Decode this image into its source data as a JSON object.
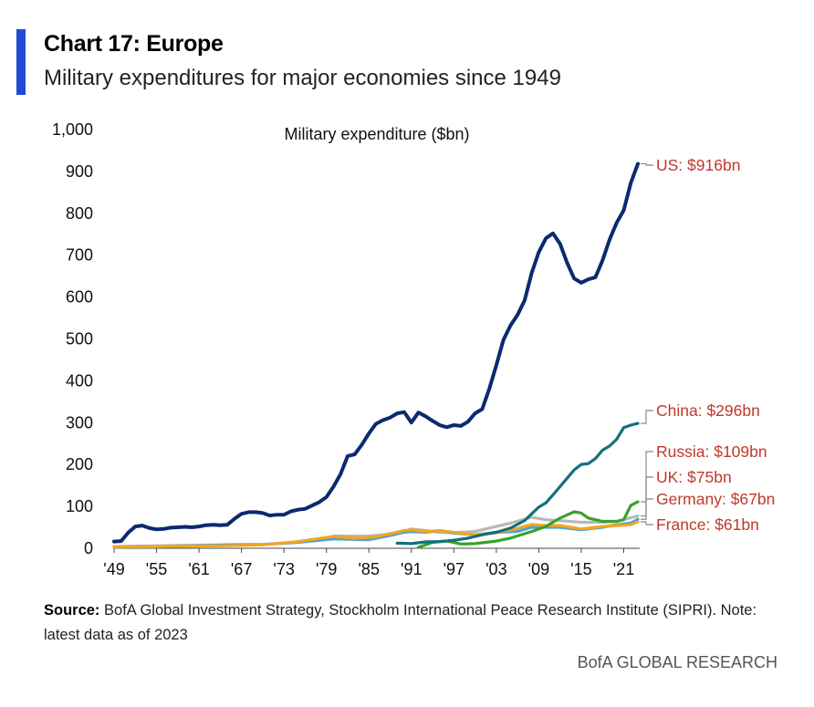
{
  "header": {
    "title": "Chart 17: Europe",
    "subtitle": "Military expenditures for major economies since 1949"
  },
  "footer": {
    "source_label": "Source:",
    "source_text": " BofA Global Investment Strategy, Stockholm International Peace Research Institute (SIPRI). Note: latest data as of 2023",
    "brand": "BofA GLOBAL RESEARCH"
  },
  "colors": {
    "accent": "#1f4bd8",
    "label_red": "#c0392b",
    "us": "#0b2a6f",
    "china": "#127080",
    "russia": "#3aa12a",
    "uk": "#b8b8b8",
    "germany": "#4aa3d8",
    "france": "#f2a61e"
  },
  "chart_data": {
    "type": "line",
    "title": "Military expenditure ($bn)",
    "xlabel": "",
    "ylabel": "",
    "xlim": [
      1949,
      2023
    ],
    "ylim": [
      0,
      1000
    ],
    "yticks": [
      "0",
      "100",
      "200",
      "300",
      "400",
      "500",
      "600",
      "700",
      "800",
      "900",
      "1,000"
    ],
    "xticks": [
      {
        "year": 1949,
        "label": "'49"
      },
      {
        "year": 1955,
        "label": "'55"
      },
      {
        "year": 1961,
        "label": "'61"
      },
      {
        "year": 1967,
        "label": "'67"
      },
      {
        "year": 1973,
        "label": "'73"
      },
      {
        "year": 1979,
        "label": "'79"
      },
      {
        "year": 1985,
        "label": "'85"
      },
      {
        "year": 1991,
        "label": "'91"
      },
      {
        "year": 1997,
        "label": "'97"
      },
      {
        "year": 2003,
        "label": "'03"
      },
      {
        "year": 2009,
        "label": "'09"
      },
      {
        "year": 2015,
        "label": "'15"
      },
      {
        "year": 2021,
        "label": "'21"
      }
    ],
    "grid": false,
    "series": [
      {
        "key": "uk",
        "label": "UK: $75bn",
        "label_value": 75,
        "points": [
          [
            1949,
            2
          ],
          [
            1955,
            4
          ],
          [
            1965,
            6
          ],
          [
            1970,
            7
          ],
          [
            1975,
            12
          ],
          [
            1979,
            20
          ],
          [
            1980,
            27
          ],
          [
            1985,
            27
          ],
          [
            1987,
            30
          ],
          [
            1990,
            38
          ],
          [
            1991,
            44
          ],
          [
            1993,
            40
          ],
          [
            1995,
            36
          ],
          [
            1997,
            35
          ],
          [
            2000,
            38
          ],
          [
            2003,
            50
          ],
          [
            2005,
            58
          ],
          [
            2008,
            72
          ],
          [
            2010,
            66
          ],
          [
            2012,
            64
          ],
          [
            2015,
            60
          ],
          [
            2018,
            60
          ],
          [
            2020,
            62
          ],
          [
            2023,
            75
          ]
        ]
      },
      {
        "key": "germany",
        "label": "Germany: $67bn",
        "label_value": 67,
        "points": [
          [
            1949,
            1
          ],
          [
            1955,
            2
          ],
          [
            1960,
            4
          ],
          [
            1965,
            6
          ],
          [
            1970,
            7
          ],
          [
            1975,
            12
          ],
          [
            1980,
            20
          ],
          [
            1985,
            18
          ],
          [
            1988,
            28
          ],
          [
            1990,
            36
          ],
          [
            1991,
            38
          ],
          [
            1993,
            36
          ],
          [
            1995,
            40
          ],
          [
            1997,
            34
          ],
          [
            2000,
            30
          ],
          [
            2003,
            36
          ],
          [
            2006,
            38
          ],
          [
            2008,
            48
          ],
          [
            2010,
            48
          ],
          [
            2012,
            48
          ],
          [
            2015,
            42
          ],
          [
            2018,
            48
          ],
          [
            2020,
            54
          ],
          [
            2022,
            58
          ],
          [
            2023,
            67
          ]
        ]
      },
      {
        "key": "france",
        "label": "France: $61bn",
        "label_value": 61,
        "points": [
          [
            1949,
            1
          ],
          [
            1955,
            2
          ],
          [
            1960,
            3
          ],
          [
            1965,
            4
          ],
          [
            1970,
            6
          ],
          [
            1975,
            14
          ],
          [
            1980,
            26
          ],
          [
            1983,
            22
          ],
          [
            1986,
            25
          ],
          [
            1990,
            40
          ],
          [
            1991,
            42
          ],
          [
            1993,
            38
          ],
          [
            1995,
            40
          ],
          [
            1997,
            36
          ],
          [
            2000,
            30
          ],
          [
            2003,
            35
          ],
          [
            2006,
            45
          ],
          [
            2008,
            55
          ],
          [
            2010,
            52
          ],
          [
            2012,
            52
          ],
          [
            2015,
            44
          ],
          [
            2018,
            50
          ],
          [
            2020,
            52
          ],
          [
            2022,
            54
          ],
          [
            2023,
            61
          ]
        ]
      },
      {
        "key": "russia",
        "label": "Russia: $109bn",
        "label_value": 109,
        "points": [
          [
            1992,
            0
          ],
          [
            1994,
            12
          ],
          [
            1996,
            15
          ],
          [
            1998,
            8
          ],
          [
            2000,
            9
          ],
          [
            2003,
            15
          ],
          [
            2005,
            22
          ],
          [
            2008,
            38
          ],
          [
            2010,
            50
          ],
          [
            2012,
            70
          ],
          [
            2014,
            85
          ],
          [
            2015,
            82
          ],
          [
            2016,
            70
          ],
          [
            2017,
            66
          ],
          [
            2018,
            62
          ],
          [
            2020,
            62
          ],
          [
            2021,
            66
          ],
          [
            2022,
            100
          ],
          [
            2023,
            109
          ]
        ]
      },
      {
        "key": "china",
        "label": "China: $296bn",
        "label_value": 296,
        "points": [
          [
            1989,
            10
          ],
          [
            1991,
            9
          ],
          [
            1993,
            13
          ],
          [
            1995,
            14
          ],
          [
            1997,
            17
          ],
          [
            1999,
            22
          ],
          [
            2001,
            30
          ],
          [
            2003,
            36
          ],
          [
            2005,
            46
          ],
          [
            2007,
            64
          ],
          [
            2008,
            80
          ],
          [
            2009,
            96
          ],
          [
            2010,
            106
          ],
          [
            2011,
            125
          ],
          [
            2012,
            145
          ],
          [
            2013,
            165
          ],
          [
            2014,
            185
          ],
          [
            2015,
            198
          ],
          [
            2016,
            200
          ],
          [
            2017,
            212
          ],
          [
            2018,
            232
          ],
          [
            2019,
            242
          ],
          [
            2020,
            258
          ],
          [
            2021,
            286
          ],
          [
            2022,
            292
          ],
          [
            2023,
            296
          ]
        ]
      },
      {
        "key": "us",
        "label": "US: $916bn",
        "label_value": 916,
        "points": [
          [
            1949,
            14
          ],
          [
            1950,
            15
          ],
          [
            1951,
            35
          ],
          [
            1952,
            50
          ],
          [
            1953,
            52
          ],
          [
            1954,
            46
          ],
          [
            1955,
            43
          ],
          [
            1956,
            44
          ],
          [
            1957,
            47
          ],
          [
            1958,
            48
          ],
          [
            1959,
            49
          ],
          [
            1960,
            48
          ],
          [
            1961,
            50
          ],
          [
            1962,
            53
          ],
          [
            1963,
            54
          ],
          [
            1964,
            53
          ],
          [
            1965,
            54
          ],
          [
            1966,
            68
          ],
          [
            1967,
            80
          ],
          [
            1968,
            84
          ],
          [
            1969,
            84
          ],
          [
            1970,
            82
          ],
          [
            1971,
            76
          ],
          [
            1972,
            78
          ],
          [
            1973,
            78
          ],
          [
            1974,
            86
          ],
          [
            1975,
            90
          ],
          [
            1976,
            92
          ],
          [
            1977,
            100
          ],
          [
            1978,
            108
          ],
          [
            1979,
            120
          ],
          [
            1980,
            145
          ],
          [
            1981,
            175
          ],
          [
            1982,
            218
          ],
          [
            1983,
            222
          ],
          [
            1984,
            245
          ],
          [
            1985,
            272
          ],
          [
            1986,
            295
          ],
          [
            1987,
            304
          ],
          [
            1988,
            310
          ],
          [
            1989,
            320
          ],
          [
            1990,
            323
          ],
          [
            1991,
            298
          ],
          [
            1992,
            322
          ],
          [
            1993,
            313
          ],
          [
            1994,
            302
          ],
          [
            1995,
            292
          ],
          [
            1996,
            287
          ],
          [
            1997,
            292
          ],
          [
            1998,
            290
          ],
          [
            1999,
            300
          ],
          [
            2000,
            320
          ],
          [
            2001,
            330
          ],
          [
            2002,
            378
          ],
          [
            2003,
            435
          ],
          [
            2004,
            495
          ],
          [
            2005,
            530
          ],
          [
            2006,
            555
          ],
          [
            2007,
            590
          ],
          [
            2008,
            655
          ],
          [
            2009,
            705
          ],
          [
            2010,
            738
          ],
          [
            2011,
            750
          ],
          [
            2012,
            725
          ],
          [
            2013,
            680
          ],
          [
            2014,
            642
          ],
          [
            2015,
            632
          ],
          [
            2016,
            640
          ],
          [
            2017,
            645
          ],
          [
            2018,
            685
          ],
          [
            2019,
            735
          ],
          [
            2020,
            775
          ],
          [
            2021,
            805
          ],
          [
            2022,
            870
          ],
          [
            2023,
            916
          ]
        ]
      }
    ]
  }
}
